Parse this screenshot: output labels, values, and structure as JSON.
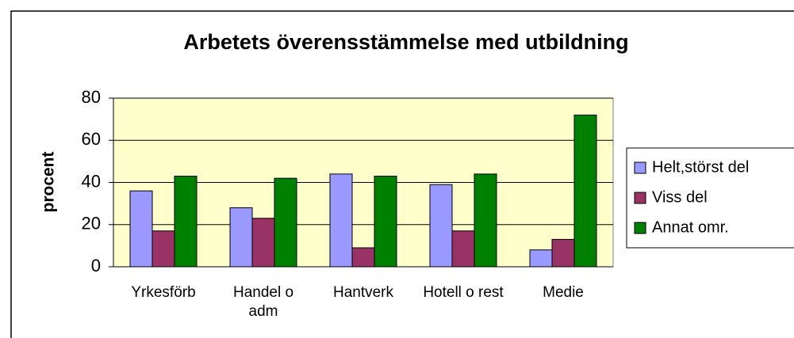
{
  "chart_data": {
    "type": "bar",
    "title": "Arbetets överensstämmelse med utbildning",
    "y_label": "procent",
    "categories": [
      "Yrkesförb",
      "Handel o adm",
      "Hantverk",
      "Hotell o rest",
      "Medie"
    ],
    "series": [
      {
        "name": "Helt,störst del",
        "color": "#9999ff",
        "values": [
          36,
          28,
          44,
          39,
          8
        ]
      },
      {
        "name": "Viss del",
        "color": "#993366",
        "values": [
          17,
          23,
          9,
          17,
          13
        ]
      },
      {
        "name": "Annat omr.",
        "color": "#008000",
        "values": [
          43,
          42,
          43,
          44,
          72
        ]
      }
    ],
    "ylim": [
      0,
      80
    ],
    "yticks": [
      0,
      20,
      40,
      60,
      80
    ],
    "grid": true,
    "legend": "right"
  }
}
